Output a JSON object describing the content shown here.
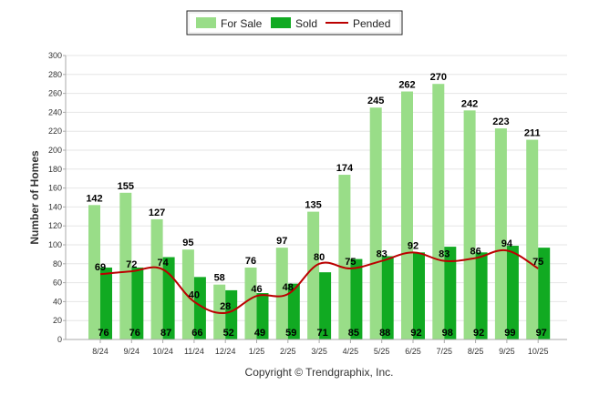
{
  "chart_data": {
    "type": "bar",
    "title": "",
    "xlabel": "",
    "ylabel": "Number of Homes",
    "ylim": [
      0,
      300
    ],
    "yticks": [
      "0",
      "20",
      "40",
      "60",
      "80",
      "100",
      "120",
      "140",
      "160",
      "180",
      "200",
      "220",
      "240",
      "260",
      "280",
      "300"
    ],
    "categories": [
      "8/24",
      "9/24",
      "10/24",
      "11/24",
      "12/24",
      "1/25",
      "2/25",
      "3/25",
      "4/25",
      "5/25",
      "6/25",
      "7/25",
      "8/25",
      "9/25",
      "10/25"
    ],
    "series": [
      {
        "name": "For Sale",
        "kind": "bar",
        "color": "#99dd88",
        "values": [
          142,
          155,
          127,
          95,
          58,
          76,
          97,
          135,
          174,
          245,
          262,
          270,
          242,
          223,
          211
        ]
      },
      {
        "name": "Sold",
        "kind": "bar",
        "color": "#11aa22",
        "values": [
          76,
          76,
          87,
          66,
          52,
          49,
          59,
          71,
          85,
          88,
          92,
          98,
          92,
          99,
          97
        ]
      },
      {
        "name": "Pended",
        "kind": "line",
        "color": "#bb0000",
        "values": [
          69,
          72,
          74,
          40,
          28,
          46,
          48,
          80,
          75,
          83,
          92,
          83,
          86,
          94,
          75
        ]
      }
    ],
    "legend_position": "top-center",
    "footer": "Copyright © Trendgraphix, Inc."
  }
}
